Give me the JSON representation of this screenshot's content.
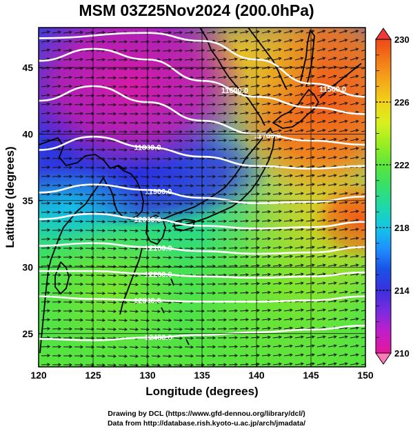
{
  "title": "MSM 03Z25Nov2024 (200.0hPa)",
  "map": {
    "lon_range": [
      120,
      150
    ],
    "lat_range": [
      22.5,
      48
    ],
    "xlabel": "Longitude (degrees)",
    "ylabel": "Latitude  (degrees)",
    "x_ticks": [
      "120",
      "125",
      "130",
      "135",
      "140",
      "145",
      "150"
    ],
    "x_tick_values": [
      120,
      125,
      130,
      135,
      140,
      145,
      150
    ],
    "y_ticks": [
      "25",
      "30",
      "35",
      "40",
      "45"
    ],
    "y_tick_values": [
      25,
      30,
      35,
      40,
      45
    ],
    "field": "temperature (K) shaded, geopotential height contours (white), wind vectors (black)"
  },
  "contours": [
    {
      "label": "11500.0",
      "value": 11500,
      "lat_at_lon": [
        [
          120,
          47.2
        ],
        [
          130,
          47.6
        ],
        [
          135,
          47.0
        ],
        [
          140,
          45.6
        ],
        [
          145,
          43.8
        ],
        [
          150,
          42.8
        ]
      ]
    },
    {
      "label": "11600.0",
      "value": 11600,
      "lat_at_lon": [
        [
          120,
          45.5
        ],
        [
          125,
          46.4
        ],
        [
          130,
          45.6
        ],
        [
          135,
          44.0
        ],
        [
          140,
          42.8
        ],
        [
          145,
          42.0
        ],
        [
          150,
          41.5
        ]
      ]
    },
    {
      "label": "11700.0",
      "value": 11700,
      "lat_at_lon": [
        [
          120,
          42.5
        ],
        [
          125,
          43.6
        ],
        [
          130,
          42.4
        ],
        [
          135,
          41.0
        ],
        [
          140,
          40.0
        ],
        [
          145,
          39.5
        ],
        [
          150,
          39.2
        ]
      ]
    },
    {
      "label": "11800.0",
      "value": 11800,
      "lat_at_lon": [
        [
          120,
          38.8
        ],
        [
          125,
          39.8
        ],
        [
          130,
          39.0
        ],
        [
          135,
          38.3
        ],
        [
          140,
          37.6
        ],
        [
          145,
          37.4
        ],
        [
          150,
          37.6
        ]
      ]
    },
    {
      "label": "11900.0",
      "value": 11900,
      "lat_at_lon": [
        [
          120,
          35.6
        ],
        [
          125,
          36.2
        ],
        [
          130,
          35.8
        ],
        [
          135,
          35.2
        ],
        [
          140,
          34.8
        ],
        [
          145,
          34.9
        ],
        [
          150,
          35.3
        ]
      ]
    },
    {
      "label": "12000.0",
      "value": 12000,
      "lat_at_lon": [
        [
          120,
          33.6
        ],
        [
          125,
          34.0
        ],
        [
          130,
          33.6
        ],
        [
          135,
          33.1
        ],
        [
          140,
          32.9
        ],
        [
          145,
          33.0
        ],
        [
          150,
          33.4
        ]
      ]
    },
    {
      "label": "12100.0",
      "value": 12100,
      "lat_at_lon": [
        [
          120,
          31.6
        ],
        [
          125,
          31.8
        ],
        [
          130,
          31.5
        ],
        [
          135,
          31.2
        ],
        [
          140,
          31.0
        ],
        [
          145,
          31.1
        ],
        [
          150,
          31.5
        ]
      ]
    },
    {
      "label": "12200.0",
      "value": 12200,
      "lat_at_lon": [
        [
          120,
          29.7
        ],
        [
          125,
          29.7
        ],
        [
          130,
          29.5
        ],
        [
          135,
          29.3
        ],
        [
          140,
          29.2
        ],
        [
          145,
          29.3
        ],
        [
          150,
          29.6
        ]
      ]
    },
    {
      "label": "12300.0",
      "value": 12300,
      "lat_at_lon": [
        [
          120,
          27.8
        ],
        [
          125,
          27.6
        ],
        [
          130,
          27.5
        ],
        [
          135,
          27.4
        ],
        [
          140,
          27.4
        ],
        [
          145,
          27.5
        ],
        [
          150,
          27.8
        ]
      ]
    },
    {
      "label": "12400.0",
      "value": 12400,
      "lat_at_lon": [
        [
          120,
          24.6
        ],
        [
          125,
          24.5
        ],
        [
          130,
          24.7
        ],
        [
          135,
          24.9
        ],
        [
          140,
          25.1
        ],
        [
          145,
          25.3
        ],
        [
          150,
          25.6
        ]
      ]
    }
  ],
  "colorbar": {
    "min": 210,
    "max": 230,
    "labels": [
      "230",
      "226",
      "222",
      "218",
      "214",
      "210"
    ],
    "label_values": [
      230,
      226,
      222,
      218,
      214,
      210
    ],
    "colors": [
      "#e3189a",
      "#c21ec8",
      "#7a2ce0",
      "#3a30dc",
      "#1a52e6",
      "#1e90ff",
      "#13c6e6",
      "#1fd9a8",
      "#36e06a",
      "#5ce63a",
      "#9aee22",
      "#d8f01e",
      "#f2d21a",
      "#f5a81a",
      "#f27a18",
      "#ee4818"
    ],
    "under_color": "#ff7ab8",
    "over_color": "#f0383a"
  },
  "credits": {
    "line1": "Drawing by DCL (https://www.gfd-dennou.org/library/dcl/)",
    "line2": "Data from http://database.rish.kyoto-u.ac.jp/arch/jmadata/"
  }
}
